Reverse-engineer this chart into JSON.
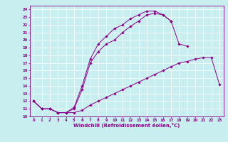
{
  "xlabel": "Windchill (Refroidissement éolien,°C)",
  "background_color": "#c8eef0",
  "line_color": "#8b008b",
  "xlim": [
    -0.5,
    23.5
  ],
  "ylim": [
    10,
    24.5
  ],
  "xticks": [
    0,
    1,
    2,
    3,
    4,
    5,
    6,
    7,
    8,
    9,
    10,
    11,
    12,
    13,
    14,
    15,
    16,
    17,
    18,
    19,
    20,
    21,
    22,
    23
  ],
  "yticks": [
    10,
    11,
    12,
    13,
    14,
    15,
    16,
    17,
    18,
    19,
    20,
    21,
    22,
    23,
    24
  ],
  "series": [
    {
      "x": [
        0,
        1,
        2,
        3,
        4,
        5,
        6,
        7,
        8,
        9,
        10,
        11,
        12,
        13,
        14,
        15,
        16,
        17,
        18,
        19,
        20,
        21,
        22,
        23
      ],
      "y": [
        12,
        11,
        11,
        10.5,
        10.5,
        10.5,
        10.8,
        11.5,
        12.0,
        12.5,
        13.0,
        13.5,
        14.0,
        14.5,
        15.0,
        15.5,
        16.0,
        16.5,
        17.0,
        17.2,
        17.5,
        17.7,
        17.7,
        14.2
      ]
    },
    {
      "x": [
        0,
        1,
        2,
        3,
        4,
        5,
        6,
        7,
        8,
        9,
        10,
        11,
        12,
        13,
        14,
        15,
        16,
        17,
        18,
        19,
        20,
        21,
        22,
        23
      ],
      "y": [
        12,
        11,
        11,
        10.5,
        10.5,
        11.0,
        13.5,
        17.0,
        18.5,
        19.5,
        20.0,
        21.0,
        21.8,
        22.5,
        23.3,
        23.5,
        23.3,
        22.5,
        19.5,
        19.2,
        null,
        null,
        null,
        null
      ]
    },
    {
      "x": [
        0,
        1,
        2,
        3,
        4,
        5,
        6,
        7,
        8,
        9,
        10,
        11,
        12,
        13,
        14,
        15,
        16,
        17,
        18,
        19,
        20,
        21,
        22,
        23
      ],
      "y": [
        12,
        11,
        11,
        10.5,
        10.5,
        11.2,
        14.0,
        17.5,
        19.5,
        20.5,
        21.5,
        22.0,
        22.8,
        23.3,
        23.8,
        23.8,
        23.3,
        22.5,
        null,
        null,
        null,
        null,
        null,
        null
      ]
    }
  ]
}
